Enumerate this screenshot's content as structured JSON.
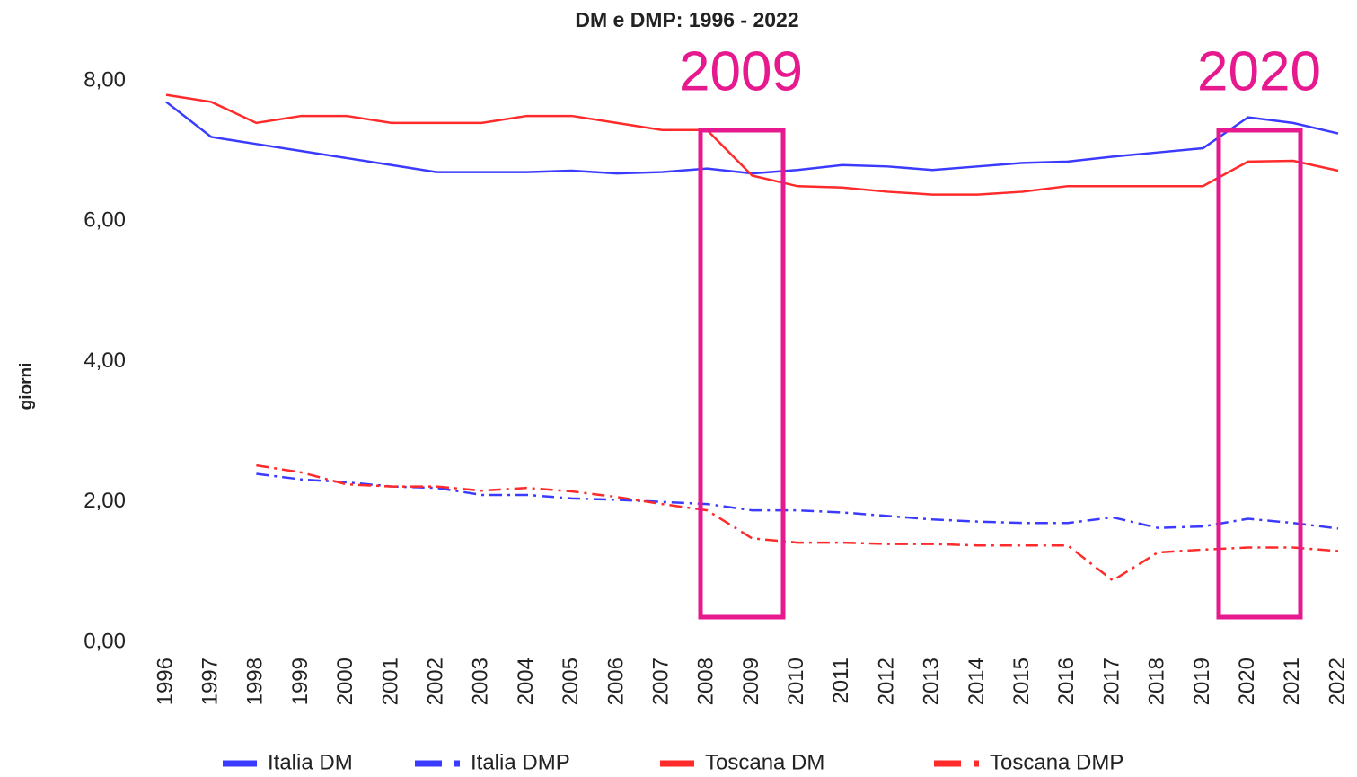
{
  "chart_data": {
    "type": "line",
    "title": "DM e DMP: 1996 - 2022",
    "y_label": "giorni",
    "categories": [
      "1996",
      "1997",
      "1998",
      "1999",
      "2000",
      "2001",
      "2002",
      "2003",
      "2004",
      "2005",
      "2006",
      "2007",
      "2008",
      "2009",
      "2010",
      "2011",
      "2012",
      "2013",
      "2014",
      "2015",
      "2016",
      "2017",
      "2018",
      "2019",
      "2020",
      "2021",
      "2022"
    ],
    "ylim": [
      0,
      8
    ],
    "yticks": [
      {
        "value": 0,
        "label": "0,00"
      },
      {
        "value": 2,
        "label": "2,00"
      },
      {
        "value": 4,
        "label": "4,00"
      },
      {
        "value": 6,
        "label": "6,00"
      },
      {
        "value": 8,
        "label": "8,00"
      }
    ],
    "grid": false,
    "legend": "bottom",
    "series": [
      {
        "name": "Italia DM",
        "color": "#3b3bff",
        "dash": "solid",
        "values": [
          7.7,
          7.2,
          7.1,
          7.0,
          6.9,
          6.8,
          6.7,
          6.7,
          6.7,
          6.72,
          6.68,
          6.7,
          6.75,
          6.68,
          6.73,
          6.8,
          6.78,
          6.73,
          6.78,
          6.83,
          6.85,
          6.92,
          6.98,
          7.04,
          7.48,
          7.4,
          7.25
        ]
      },
      {
        "name": "Italia DMP",
        "color": "#3b3bff",
        "dash": "dashdot",
        "values": [
          null,
          null,
          2.4,
          2.32,
          2.28,
          2.22,
          2.2,
          2.1,
          2.1,
          2.05,
          2.03,
          2.0,
          1.97,
          1.88,
          1.88,
          1.85,
          1.8,
          1.75,
          1.72,
          1.7,
          1.7,
          1.78,
          1.63,
          1.65,
          1.76,
          1.7,
          1.62
        ]
      },
      {
        "name": "Toscana DM",
        "color": "#ff2a2a",
        "dash": "solid",
        "values": [
          7.8,
          7.7,
          7.4,
          7.5,
          7.5,
          7.4,
          7.4,
          7.4,
          7.5,
          7.5,
          7.4,
          7.3,
          7.3,
          6.65,
          6.5,
          6.48,
          6.42,
          6.38,
          6.38,
          6.42,
          6.5,
          6.5,
          6.5,
          6.5,
          6.85,
          6.86,
          6.72
        ]
      },
      {
        "name": "Toscana DMP",
        "color": "#ff2a2a",
        "dash": "dashdot",
        "values": [
          null,
          null,
          2.52,
          2.42,
          2.25,
          2.22,
          2.22,
          2.16,
          2.2,
          2.15,
          2.07,
          1.97,
          1.88,
          1.48,
          1.42,
          1.42,
          1.4,
          1.4,
          1.38,
          1.38,
          1.38,
          0.88,
          1.28,
          1.32,
          1.35,
          1.35,
          1.3
        ]
      }
    ],
    "annotations": [
      "2009",
      "2020"
    ],
    "annotation_color": "#e6198f"
  }
}
